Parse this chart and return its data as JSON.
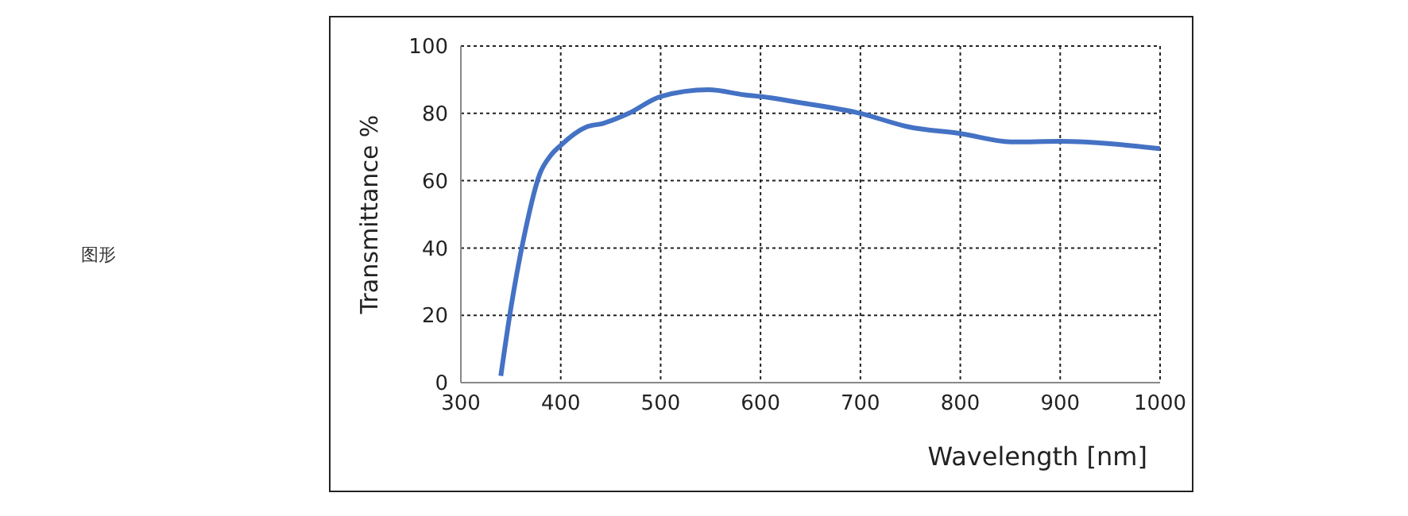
{
  "chart_data": {
    "type": "line",
    "xlabel": "Wavelength [nm]",
    "ylabel": "Transmittance %",
    "annotations": [
      "图形"
    ],
    "xlim": [
      300,
      1000
    ],
    "xticks": [
      300,
      400,
      500,
      600,
      700,
      800,
      900,
      1000
    ],
    "ylim": [
      0,
      100
    ],
    "yticks": [
      0,
      20,
      40,
      60,
      80,
      100
    ],
    "grid": true,
    "line_style": "solid",
    "series": [
      {
        "color": "#4472c4",
        "x": [
          340,
          350,
          363,
          379,
          390,
          400,
          426,
          442,
          468,
          500,
          548,
          584,
          600,
          637,
          700,
          748,
          800,
          853,
          900,
          1000
        ],
        "values": [
          2,
          22,
          43,
          62,
          67.5,
          70.5,
          76,
          77,
          80,
          85,
          87,
          85.5,
          85,
          83.3,
          80,
          76,
          74,
          71.5,
          71.7,
          69.5
        ]
      }
    ]
  }
}
